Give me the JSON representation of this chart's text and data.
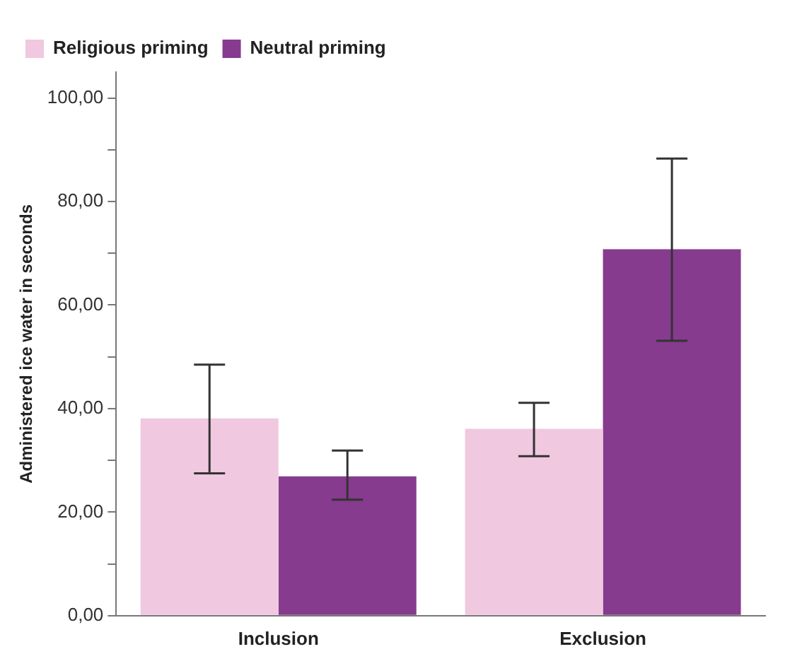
{
  "chart_data": {
    "type": "bar",
    "ylabel": "Administered ice water in seconds",
    "categories": [
      "Inclusion",
      "Exclusion"
    ],
    "series": [
      {
        "name": "Religious priming",
        "color": "#f0c8e0",
        "values": [
          38.1,
          36.1
        ],
        "errors": [
          [
            27.5,
            48.5
          ],
          [
            30.8,
            41.1
          ]
        ]
      },
      {
        "name": "Neutral priming",
        "color": "#863b8e",
        "values": [
          26.9,
          70.8
        ],
        "errors": [
          [
            22.4,
            31.9
          ],
          [
            53.1,
            88.3
          ]
        ]
      }
    ],
    "ylim": [
      0,
      105
    ],
    "yticks": [
      {
        "value": 0,
        "label": "0,00"
      },
      {
        "value": 10,
        "label": null
      },
      {
        "value": 20,
        "label": "20,00"
      },
      {
        "value": 30,
        "label": null
      },
      {
        "value": 40,
        "label": "40,00"
      },
      {
        "value": 50,
        "label": null
      },
      {
        "value": 60,
        "label": "60,00"
      },
      {
        "value": 70,
        "label": null
      },
      {
        "value": 80,
        "label": "80,00"
      },
      {
        "value": 90,
        "label": null
      },
      {
        "value": 100,
        "label": "100,00"
      }
    ],
    "grid": false,
    "legend": "top left"
  }
}
